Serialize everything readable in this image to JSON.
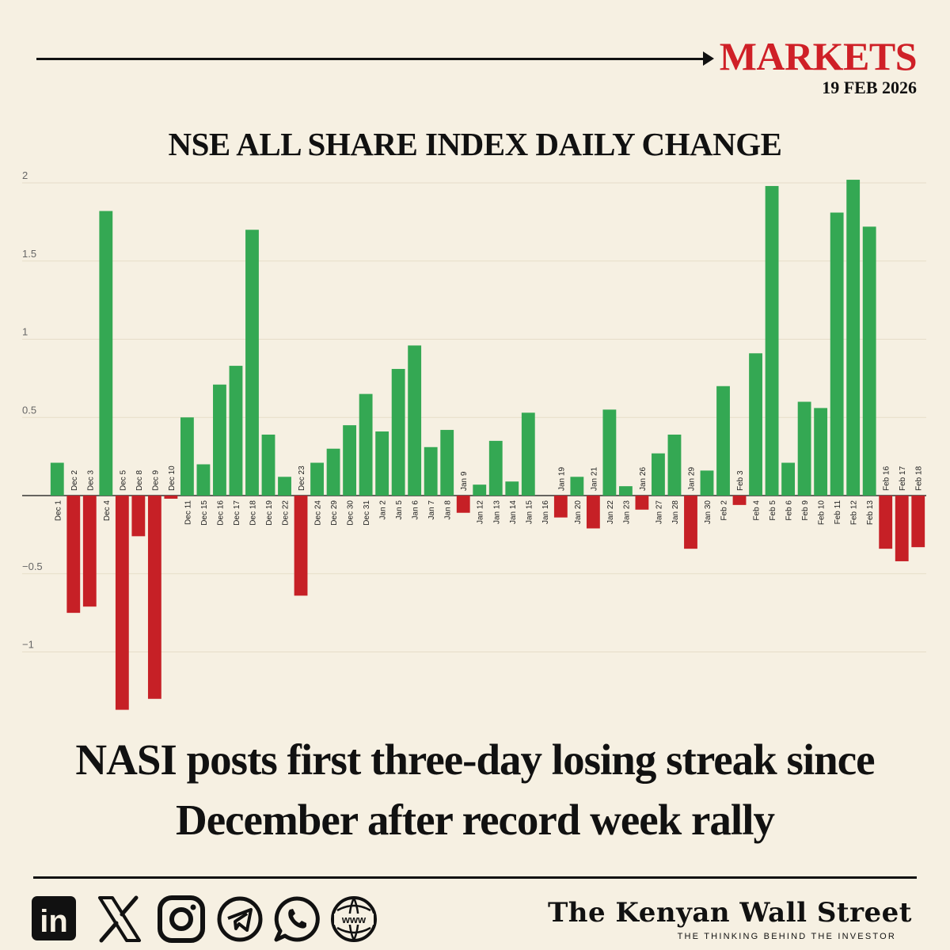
{
  "header": {
    "section": "MARKETS",
    "date": "19 FEB 2026"
  },
  "chart_data": {
    "type": "bar",
    "title": "NSE ALL SHARE INDEX DAILY CHANGE",
    "xlabel": "",
    "ylabel": "",
    "ylim": [
      -1.37,
      2.03
    ],
    "yticks": [
      2,
      1.5,
      1,
      0.5,
      0,
      -0.5,
      -1
    ],
    "ytick_labels": [
      "2",
      "1.5",
      "1",
      "0.5",
      "",
      "−0.5",
      "−1"
    ],
    "grid": true,
    "positive_color": "#34a853",
    "negative_color": "#c62026",
    "categories": [
      "Dec 1",
      "Dec 2",
      "Dec 3",
      "Dec 4",
      "Dec 5",
      "Dec 8",
      "Dec 9",
      "Dec 10",
      "Dec 11",
      "Dec 15",
      "Dec 16",
      "Dec 17",
      "Dec 18",
      "Dec 19",
      "Dec 22",
      "Dec 23",
      "Dec 24",
      "Dec 29",
      "Dec 30",
      "Dec 31",
      "Jan 2",
      "Jan 5",
      "Jan 6",
      "Jan 7",
      "Jan 8",
      "Jan 9",
      "Jan 12",
      "Jan 13",
      "Jan 14",
      "Jan 15",
      "Jan 16",
      "Jan 19",
      "Jan 20",
      "Jan 21",
      "Jan 22",
      "Jan 23",
      "Jan 26",
      "Jan 27",
      "Jan 28",
      "Jan 29",
      "Jan 30",
      "Feb 2",
      "Feb 3",
      "Feb 4",
      "Feb 5",
      "Feb 6",
      "Feb 9",
      "Feb 10",
      "Feb 11",
      "Feb 12",
      "Feb 13",
      "Feb 16",
      "Feb 17",
      "Feb 18"
    ],
    "values": [
      0.21,
      -0.75,
      -0.71,
      1.82,
      -1.37,
      -0.26,
      -1.3,
      -0.02,
      0.5,
      0.2,
      0.71,
      0.83,
      1.7,
      0.39,
      0.12,
      -0.64,
      0.21,
      0.3,
      0.45,
      0.65,
      0.41,
      0.81,
      0.96,
      0.31,
      0.42,
      -0.11,
      0.07,
      0.35,
      0.09,
      0.53,
      0.0,
      -0.14,
      0.12,
      -0.21,
      0.55,
      0.06,
      -0.09,
      0.27,
      0.39,
      -0.34,
      0.16,
      0.7,
      -0.06,
      0.91,
      1.98,
      0.21,
      0.6,
      0.56,
      1.81,
      2.02,
      1.72,
      -0.34,
      -0.42,
      -0.33
    ]
  },
  "headline": {
    "line1": "NASI posts first three-day losing streak since",
    "line2": "December after record week rally"
  },
  "footer": {
    "social_icons": [
      "linkedin-icon",
      "x-icon",
      "instagram-icon",
      "telegram-icon",
      "whatsapp-icon",
      "web-icon"
    ],
    "linkedin_text": "in",
    "web_text": "www",
    "brand": "The Kenyan Wall Street",
    "tagline": "THE THINKING BEHIND THE INVESTOR"
  }
}
